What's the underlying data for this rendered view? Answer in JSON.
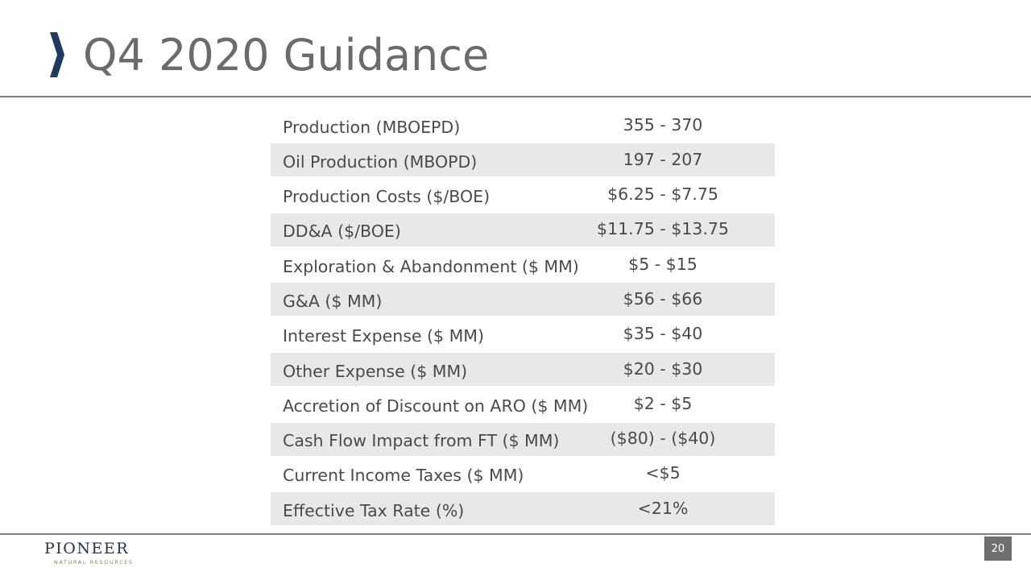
{
  "slide": {
    "title": "Q4 2020 Guidance",
    "page_number": "20"
  },
  "brand": {
    "logo_name": "PIONEER",
    "logo_tagline": "NATURAL RESOURCES",
    "accent_color": "#1f3a5c",
    "tagline_color": "#7a8c4c"
  },
  "guidance": {
    "rows": [
      {
        "label": "Production (MBOEPD)",
        "value": "355 - 370"
      },
      {
        "label": "Oil Production (MBOPD)",
        "value": "197 - 207"
      },
      {
        "label": "Production Costs ($/BOE)",
        "value": "$6.25 - $7.75"
      },
      {
        "label": "DD&A ($/BOE)",
        "value": "$11.75 - $13.75"
      },
      {
        "label": "Exploration & Abandonment ($ MM)",
        "value": "$5 - $15"
      },
      {
        "label": "G&A ($ MM)",
        "value": "$56 - $66"
      },
      {
        "label": "Interest Expense ($ MM)",
        "value": "$35 - $40"
      },
      {
        "label": "Other Expense ($ MM)",
        "value": "$20 - $30"
      },
      {
        "label": "Accretion of Discount on ARO ($ MM)",
        "value": "$2 - $5"
      },
      {
        "label": "Cash Flow Impact from FT ($ MM)",
        "value": "($80) - ($40)"
      },
      {
        "label": "Current Income Taxes ($ MM)",
        "value": "<$5"
      },
      {
        "label": "Effective Tax Rate (%)",
        "value": "<21%"
      }
    ]
  }
}
